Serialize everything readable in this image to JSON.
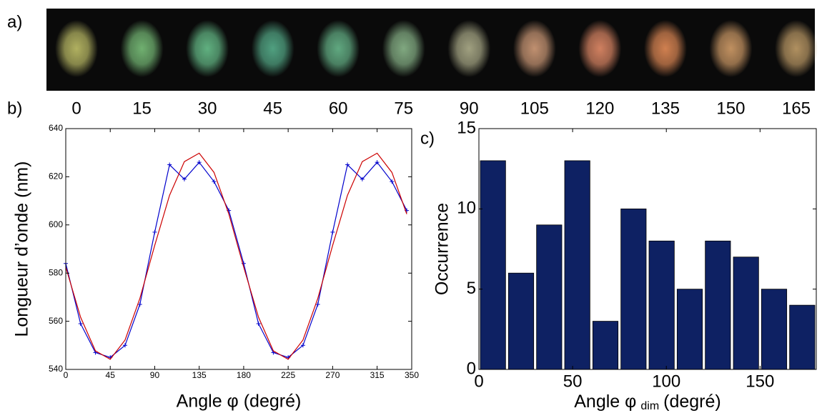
{
  "image_strip": {
    "label": "a)",
    "captions": [
      0,
      15,
      30,
      45,
      60,
      75,
      90,
      105,
      120,
      135,
      150,
      165
    ],
    "colors": [
      "#b0b060",
      "#70b070",
      "#60b080",
      "#50a080",
      "#60a880",
      "#80a880",
      "#a0a080",
      "#c09070",
      "#d08060",
      "#d08050",
      "#c09060",
      "#b09060"
    ]
  },
  "chart_data": [
    {
      "type": "line",
      "panel_label": "b)",
      "xlabel": "Angle φ (degré)",
      "ylabel": "Longueur d’onde  (nm)",
      "x": [
        0,
        15,
        30,
        45,
        60,
        75,
        90,
        105,
        120,
        135,
        150,
        165,
        180,
        195,
        210,
        225,
        240,
        255,
        270,
        285,
        300,
        315,
        330,
        345
      ],
      "series": [
        {
          "color": "#0000cc",
          "marker": "+",
          "values": [
            584,
            559,
            547,
            545,
            550,
            567,
            597,
            625,
            619,
            626,
            618,
            606,
            584,
            559,
            547,
            545,
            550,
            567,
            597,
            625,
            619,
            626,
            618,
            606
          ]
        },
        {
          "color": "#cc0000",
          "values": [
            582.5,
            561.7,
            547.7,
            544.2,
            552.2,
            569.5,
            591.5,
            612.3,
            626.3,
            629.8,
            621.8,
            604.5,
            582.5,
            561.7,
            547.7,
            544.2,
            552.2,
            569.5,
            591.5,
            612.3,
            626.3,
            629.8,
            621.8,
            604.5
          ]
        }
      ],
      "xlim": [
        0,
        350
      ],
      "xticks": [
        0,
        45,
        90,
        135,
        180,
        225,
        270,
        315,
        350
      ],
      "ylim": [
        540,
        640
      ],
      "yticks": [
        540,
        560,
        580,
        600,
        620,
        640
      ]
    },
    {
      "type": "histogram",
      "panel_label": "c)",
      "xlabel": "Angle φ",
      "xlabel_sub": "dim",
      "xlabel_suffix": "(degré)",
      "ylabel": "Occurrence",
      "bins": [
        0,
        15,
        30,
        45,
        60,
        75,
        90,
        105,
        120,
        135,
        150,
        165,
        180
      ],
      "values": [
        13,
        6,
        9,
        13,
        3,
        10,
        8,
        5,
        8,
        7,
        5,
        4
      ],
      "color": "#0e2163",
      "xlim": [
        0,
        180
      ],
      "xticks": [
        0,
        50,
        100,
        150
      ],
      "ylim": [
        0,
        15
      ],
      "yticks": [
        0,
        5,
        10,
        15
      ]
    }
  ]
}
